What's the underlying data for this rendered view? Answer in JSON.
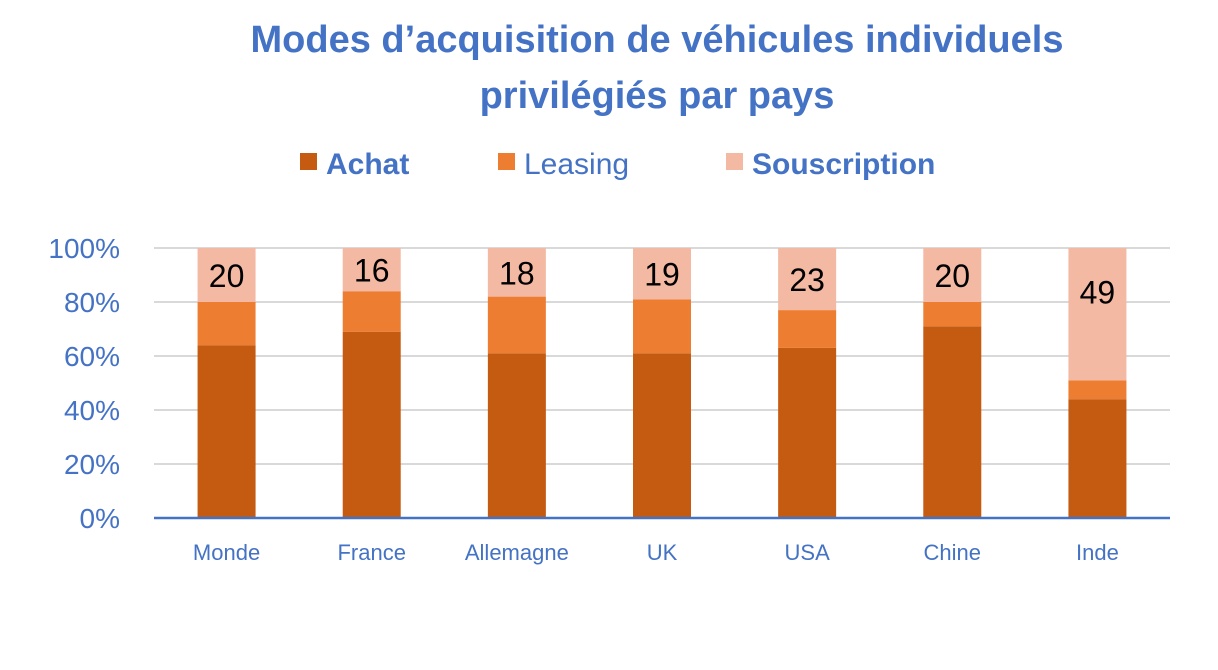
{
  "chart_data": {
    "type": "bar",
    "stacked": true,
    "percent_stacked": true,
    "title_lines": [
      "Modes d’acquisition de véhicules individuels",
      "privilégiés par pays"
    ],
    "categories": [
      "Monde",
      "France",
      "Allemagne",
      "UK",
      "USA",
      "Chine",
      "Inde"
    ],
    "series": [
      {
        "name": "Achat",
        "values": [
          64,
          69,
          61,
          61,
          63,
          71,
          44
        ],
        "color": "#C55A11",
        "legend_bold": true
      },
      {
        "name": "Leasing",
        "values": [
          16,
          15,
          21,
          20,
          14,
          9,
          7
        ],
        "color": "#ED7D31",
        "legend_bold": false
      },
      {
        "name": "Souscription",
        "values": [
          20,
          16,
          18,
          19,
          23,
          20,
          49
        ],
        "color": "#F4B9A3",
        "legend_bold": true
      }
    ],
    "data_labels_series": "Souscription",
    "data_labels": [
      "20",
      "16",
      "18",
      "19",
      "23",
      "20",
      "49"
    ],
    "y_ticks": [
      "0%",
      "20%",
      "40%",
      "60%",
      "80%",
      "100%"
    ],
    "ylim": [
      0,
      100
    ],
    "grid": true,
    "legend_position": "top",
    "text_color": "#4472C4",
    "axis_color": "#4472C4",
    "grid_color": "#D9D9D9"
  }
}
